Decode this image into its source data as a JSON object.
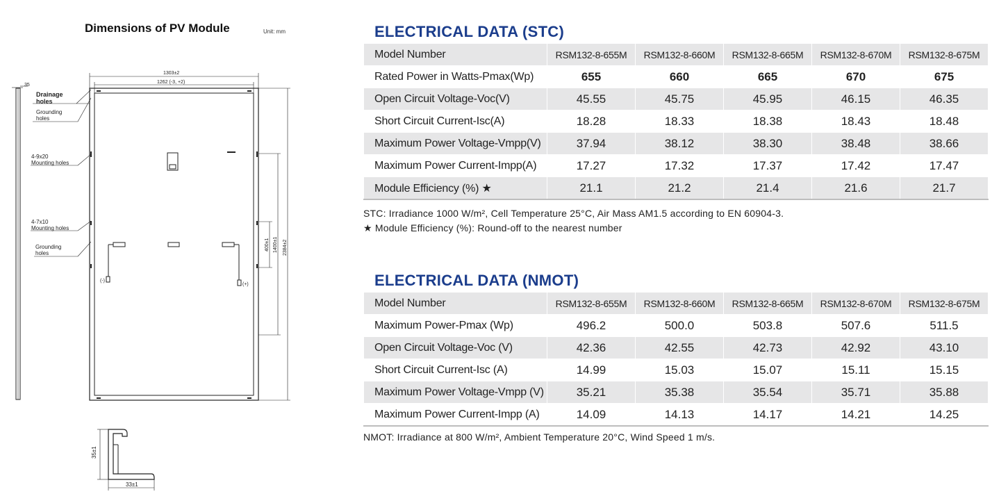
{
  "dimensions": {
    "title": "Dimensions of PV Module",
    "unit": "Unit: mm",
    "labels": {
      "drainage": [
        "Drainage",
        "holes"
      ],
      "grounding_top": [
        "Grounding",
        "holes"
      ],
      "mounting_9x20": [
        "4-9x20",
        "Mounting holes"
      ],
      "mounting_7x10": [
        "4-7x10",
        "Mounting holes"
      ],
      "grounding_bottom": [
        "Grounding",
        "holes"
      ],
      "width_outer": "1303±2",
      "width_inner": "1262 (-3, +2)",
      "side_thickness": "35",
      "height_400": "400±1",
      "height_1400": "1400±1",
      "height_total": "2384±2",
      "minus": "(-)",
      "plus": "(+)",
      "frame_height": "35±1",
      "frame_width": "33±1"
    }
  },
  "stc": {
    "title": "ELECTRICAL DATA (STC)",
    "header_label": "Model Number",
    "models": [
      "RSM132-8-655M",
      "RSM132-8-660M",
      "RSM132-8-665M",
      "RSM132-8-670M",
      "RSM132-8-675M"
    ],
    "rows": [
      {
        "label": "Rated Power in Watts-Pmax(Wp)",
        "values": [
          "655",
          "660",
          "665",
          "670",
          "675"
        ]
      },
      {
        "label": "Open Circuit Voltage-Voc(V)",
        "values": [
          "45.55",
          "45.75",
          "45.95",
          "46.15",
          "46.35"
        ]
      },
      {
        "label": "Short Circuit Current-Isc(A)",
        "values": [
          "18.28",
          "18.33",
          "18.38",
          "18.43",
          "18.48"
        ]
      },
      {
        "label": "Maximum Power Voltage-Vmpp(V)",
        "values": [
          "37.94",
          "38.12",
          "38.30",
          "38.48",
          "38.66"
        ]
      },
      {
        "label": "Maximum Power Current-Impp(A)",
        "values": [
          "17.27",
          "17.32",
          "17.37",
          "17.42",
          "17.47"
        ]
      },
      {
        "label": "Module Efficiency (%) ★",
        "values": [
          "21.1",
          "21.2",
          "21.4",
          "21.6",
          "21.7"
        ]
      }
    ],
    "note1": "STC: Irradiance 1000 W/m², Cell Temperature 25°C, Air Mass AM1.5 according to EN 60904-3.",
    "note2": "★ Module Efficiency (%): Round-off to the nearest number"
  },
  "nmot": {
    "title": "ELECTRICAL DATA (NMOT)",
    "header_label": "Model Number",
    "models": [
      "RSM132-8-655M",
      "RSM132-8-660M",
      "RSM132-8-665M",
      "RSM132-8-670M",
      "RSM132-8-675M"
    ],
    "rows": [
      {
        "label": "Maximum Power-Pmax (Wp)",
        "values": [
          "496.2",
          "500.0",
          "503.8",
          "507.6",
          "511.5"
        ]
      },
      {
        "label": "Open Circuit Voltage-Voc (V)",
        "values": [
          "42.36",
          "42.55",
          "42.73",
          "42.92",
          "43.10"
        ]
      },
      {
        "label": "Short Circuit Current-Isc (A)",
        "values": [
          "14.99",
          "15.03",
          "15.07",
          "15.11",
          "15.15"
        ]
      },
      {
        "label": "Maximum Power Voltage-Vmpp (V)",
        "values": [
          "35.21",
          "35.38",
          "35.54",
          "35.71",
          "35.88"
        ]
      },
      {
        "label": "Maximum Power Current-Impp (A)",
        "values": [
          "14.09",
          "14.13",
          "14.17",
          "14.21",
          "14.25"
        ]
      }
    ],
    "note": "NMOT: Irradiance at 800 W/m², Ambient Temperature 20°C, Wind Speed 1 m/s."
  }
}
